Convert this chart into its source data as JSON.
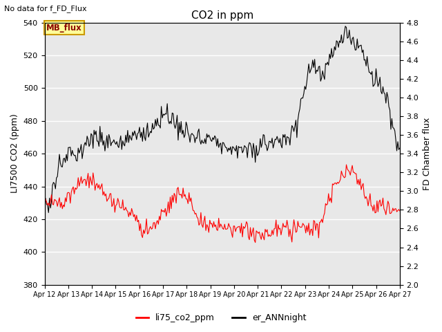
{
  "title": "CO2 in ppm",
  "top_left_text": "No data for f_FD_Flux",
  "ylabel_left": "LI7500 CO2 (ppm)",
  "ylabel_right": "FD Chamber flux",
  "ylim_left": [
    380,
    540
  ],
  "ylim_right": [
    2.0,
    4.8
  ],
  "yticks_left": [
    380,
    400,
    420,
    440,
    460,
    480,
    500,
    520,
    540
  ],
  "yticks_right": [
    2.0,
    2.2,
    2.4,
    2.6,
    2.8,
    3.0,
    3.2,
    3.4,
    3.6,
    3.8,
    4.0,
    4.2,
    4.4,
    4.6,
    4.8
  ],
  "xtick_labels": [
    "Apr 12",
    "Apr 13",
    "Apr 14",
    "Apr 15",
    "Apr 16",
    "Apr 17",
    "Apr 18",
    "Apr 19",
    "Apr 20",
    "Apr 21",
    "Apr 22",
    "Apr 23",
    "Apr 24",
    "Apr 25",
    "Apr 26",
    "Apr 27"
  ],
  "legend_labels": [
    "li75_co2_ppm",
    "er_ANNnight"
  ],
  "legend_colors": [
    "red",
    "black"
  ],
  "mb_flux_box_color": "#ffff99",
  "mb_flux_border_color": "#cc9900",
  "mb_flux_text": "MB_flux",
  "background_color": "#e8e8e8",
  "grid_color": "white",
  "li75_color": "red",
  "er_ANN_color": "black",
  "li75_lw": 0.8,
  "er_ANN_lw": 0.8,
  "n_days": 15,
  "pts_per_day": 24
}
